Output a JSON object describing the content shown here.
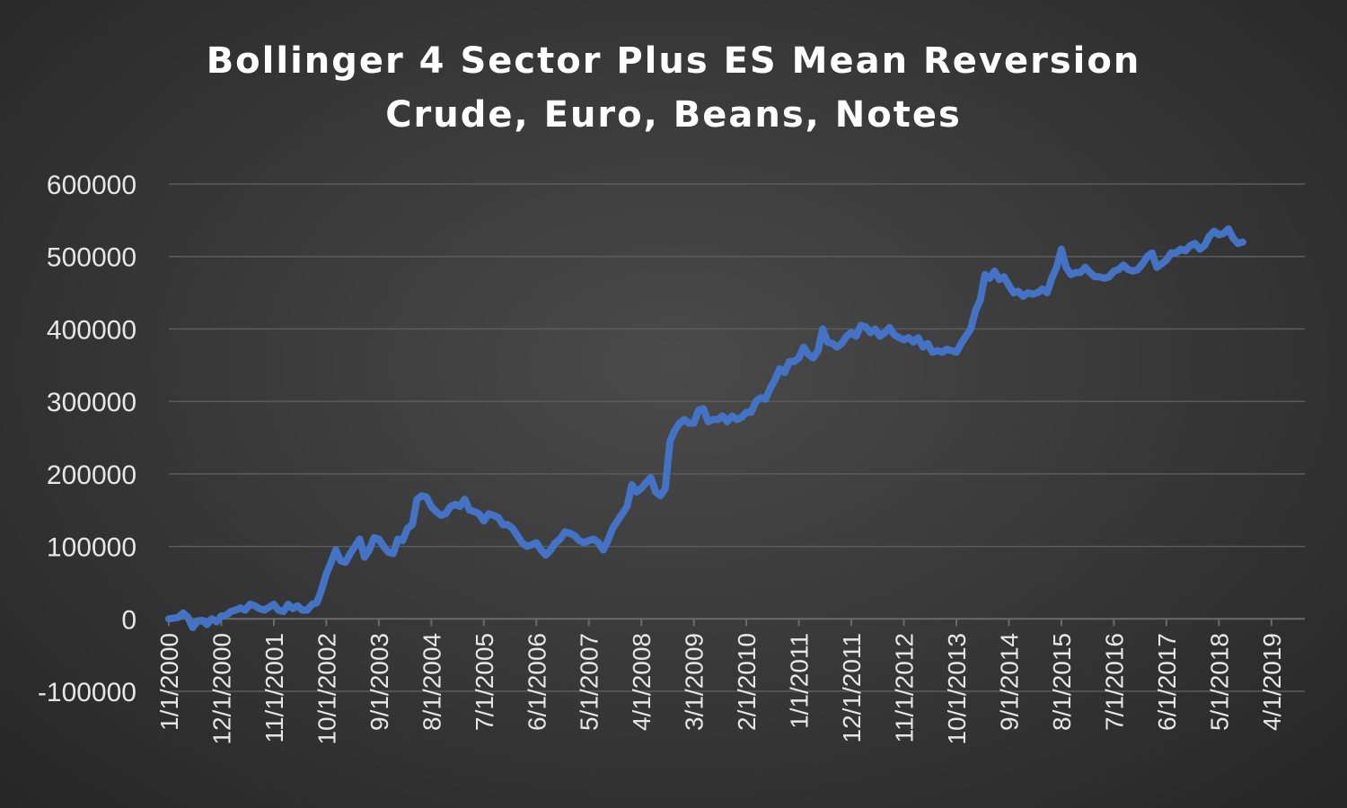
{
  "chart_data": {
    "type": "line",
    "title_line1": "Bollinger 4 Sector Plus ES Mean Reversion",
    "title_line2": "Crude, Euro, Beans, Notes",
    "ylim": [
      -100000,
      600000
    ],
    "y_ticks": [
      "600000",
      "500000",
      "400000",
      "300000",
      "200000",
      "100000",
      "0",
      "-100000"
    ],
    "y_tick_values": [
      600000,
      500000,
      400000,
      300000,
      200000,
      100000,
      0,
      -100000
    ],
    "x_tick_labels": [
      "1/1/2000",
      "12/1/2000",
      "11/1/2001",
      "10/1/2002",
      "9/1/2003",
      "8/1/2004",
      "7/1/2005",
      "6/1/2006",
      "5/1/2007",
      "4/1/2008",
      "3/1/2009",
      "2/1/2010",
      "1/1/2011",
      "12/1/2011",
      "11/1/2012",
      "10/1/2013",
      "9/1/2014",
      "8/1/2015",
      "7/1/2016",
      "6/1/2017",
      "5/1/2018",
      "4/1/2019"
    ],
    "x_tick_months": [
      0,
      11,
      22,
      33,
      44,
      55,
      66,
      77,
      88,
      99,
      110,
      121,
      132,
      143,
      154,
      165,
      176,
      187,
      198,
      209,
      220,
      231
    ],
    "x_range_months": [
      0,
      238
    ],
    "series": [
      {
        "color": "#4472c4",
        "points": [
          [
            0,
            0
          ],
          [
            2,
            2000
          ],
          [
            3,
            8000
          ],
          [
            4,
            2000
          ],
          [
            5,
            -12000
          ],
          [
            6,
            -3000
          ],
          [
            7,
            -2000
          ],
          [
            8,
            -8000
          ],
          [
            9,
            0
          ],
          [
            10,
            -4000
          ],
          [
            11,
            4000
          ],
          [
            12,
            5000
          ],
          [
            13,
            10000
          ],
          [
            14,
            12000
          ],
          [
            15,
            15000
          ],
          [
            16,
            12000
          ],
          [
            17,
            20000
          ],
          [
            18,
            18000
          ],
          [
            19,
            14000
          ],
          [
            20,
            12000
          ],
          [
            21,
            16000
          ],
          [
            22,
            20000
          ],
          [
            23,
            12000
          ],
          [
            24,
            10000
          ],
          [
            25,
            20000
          ],
          [
            26,
            14000
          ],
          [
            27,
            18000
          ],
          [
            28,
            12000
          ],
          [
            29,
            12000
          ],
          [
            30,
            20000
          ],
          [
            31,
            22000
          ],
          [
            32,
            40000
          ],
          [
            33,
            62000
          ],
          [
            34,
            78000
          ],
          [
            35,
            95000
          ],
          [
            36,
            80000
          ],
          [
            37,
            78000
          ],
          [
            38,
            90000
          ],
          [
            39,
            100000
          ],
          [
            40,
            110000
          ],
          [
            41,
            85000
          ],
          [
            42,
            95000
          ],
          [
            43,
            112000
          ],
          [
            44,
            110000
          ],
          [
            45,
            100000
          ],
          [
            46,
            92000
          ],
          [
            47,
            90000
          ],
          [
            48,
            110000
          ],
          [
            49,
            108000
          ],
          [
            50,
            125000
          ],
          [
            51,
            130000
          ],
          [
            52,
            165000
          ],
          [
            53,
            170000
          ],
          [
            54,
            168000
          ],
          [
            55,
            155000
          ],
          [
            56,
            148000
          ],
          [
            57,
            143000
          ],
          [
            58,
            145000
          ],
          [
            59,
            155000
          ],
          [
            60,
            158000
          ],
          [
            61,
            155000
          ],
          [
            62,
            165000
          ],
          [
            63,
            150000
          ],
          [
            64,
            148000
          ],
          [
            65,
            145000
          ],
          [
            66,
            135000
          ],
          [
            67,
            145000
          ],
          [
            68,
            143000
          ],
          [
            69,
            140000
          ],
          [
            70,
            130000
          ],
          [
            71,
            130000
          ],
          [
            72,
            125000
          ],
          [
            73,
            115000
          ],
          [
            74,
            105000
          ],
          [
            75,
            100000
          ],
          [
            76,
            102000
          ],
          [
            77,
            105000
          ],
          [
            78,
            95000
          ],
          [
            79,
            88000
          ],
          [
            80,
            95000
          ],
          [
            81,
            105000
          ],
          [
            82,
            110000
          ],
          [
            83,
            120000
          ],
          [
            84,
            118000
          ],
          [
            85,
            115000
          ],
          [
            86,
            108000
          ],
          [
            87,
            105000
          ],
          [
            88,
            108000
          ],
          [
            89,
            110000
          ],
          [
            90,
            105000
          ],
          [
            91,
            95000
          ],
          [
            92,
            108000
          ],
          [
            93,
            125000
          ],
          [
            94,
            135000
          ],
          [
            95,
            145000
          ],
          [
            96,
            155000
          ],
          [
            97,
            185000
          ],
          [
            98,
            175000
          ],
          [
            99,
            180000
          ],
          [
            100,
            188000
          ],
          [
            101,
            195000
          ],
          [
            102,
            175000
          ],
          [
            103,
            170000
          ],
          [
            104,
            180000
          ],
          [
            105,
            245000
          ],
          [
            106,
            260000
          ],
          [
            107,
            270000
          ],
          [
            108,
            275000
          ],
          [
            109,
            270000
          ],
          [
            110,
            270000
          ],
          [
            111,
            288000
          ],
          [
            112,
            290000
          ],
          [
            113,
            272000
          ],
          [
            114,
            275000
          ],
          [
            115,
            275000
          ],
          [
            116,
            280000
          ],
          [
            117,
            272000
          ],
          [
            118,
            280000
          ],
          [
            119,
            275000
          ],
          [
            120,
            278000
          ],
          [
            121,
            285000
          ],
          [
            122,
            285000
          ],
          [
            123,
            300000
          ],
          [
            124,
            305000
          ],
          [
            125,
            303000
          ],
          [
            126,
            318000
          ],
          [
            127,
            330000
          ],
          [
            128,
            345000
          ],
          [
            129,
            340000
          ],
          [
            130,
            355000
          ],
          [
            131,
            355000
          ],
          [
            132,
            360000
          ],
          [
            133,
            375000
          ],
          [
            134,
            365000
          ],
          [
            135,
            360000
          ],
          [
            136,
            370000
          ],
          [
            137,
            400000
          ],
          [
            138,
            382000
          ],
          [
            139,
            380000
          ],
          [
            140,
            375000
          ],
          [
            141,
            380000
          ],
          [
            142,
            390000
          ],
          [
            143,
            395000
          ],
          [
            144,
            390000
          ],
          [
            145,
            405000
          ],
          [
            146,
            403000
          ],
          [
            147,
            395000
          ],
          [
            148,
            400000
          ],
          [
            149,
            390000
          ],
          [
            150,
            395000
          ],
          [
            151,
            402000
          ],
          [
            152,
            392000
          ],
          [
            153,
            388000
          ],
          [
            154,
            385000
          ],
          [
            155,
            388000
          ],
          [
            156,
            382000
          ],
          [
            157,
            388000
          ],
          [
            158,
            375000
          ],
          [
            159,
            380000
          ],
          [
            160,
            368000
          ],
          [
            161,
            370000
          ],
          [
            162,
            368000
          ],
          [
            163,
            372000
          ],
          [
            164,
            370000
          ],
          [
            165,
            368000
          ],
          [
            166,
            380000
          ],
          [
            167,
            390000
          ],
          [
            168,
            400000
          ],
          [
            169,
            425000
          ],
          [
            170,
            440000
          ],
          [
            171,
            475000
          ],
          [
            172,
            470000
          ],
          [
            173,
            480000
          ],
          [
            174,
            468000
          ],
          [
            175,
            472000
          ],
          [
            176,
            460000
          ],
          [
            177,
            450000
          ],
          [
            178,
            452000
          ],
          [
            179,
            445000
          ],
          [
            180,
            450000
          ],
          [
            181,
            448000
          ],
          [
            182,
            450000
          ],
          [
            183,
            455000
          ],
          [
            184,
            450000
          ],
          [
            185,
            470000
          ],
          [
            186,
            485000
          ],
          [
            187,
            510000
          ],
          [
            188,
            485000
          ],
          [
            189,
            475000
          ],
          [
            190,
            478000
          ],
          [
            191,
            478000
          ],
          [
            192,
            485000
          ],
          [
            193,
            478000
          ],
          [
            194,
            472000
          ],
          [
            195,
            472000
          ],
          [
            196,
            470000
          ],
          [
            197,
            472000
          ],
          [
            198,
            480000
          ],
          [
            199,
            482000
          ],
          [
            200,
            488000
          ],
          [
            201,
            482000
          ],
          [
            202,
            480000
          ],
          [
            203,
            482000
          ],
          [
            204,
            490000
          ],
          [
            205,
            500000
          ],
          [
            206,
            505000
          ],
          [
            207,
            485000
          ],
          [
            208,
            490000
          ],
          [
            209,
            495000
          ],
          [
            210,
            505000
          ],
          [
            211,
            505000
          ],
          [
            212,
            510000
          ],
          [
            213,
            508000
          ],
          [
            214,
            515000
          ],
          [
            215,
            518000
          ],
          [
            216,
            510000
          ],
          [
            217,
            515000
          ],
          [
            218,
            528000
          ],
          [
            219,
            535000
          ],
          [
            220,
            530000
          ],
          [
            221,
            532000
          ],
          [
            222,
            538000
          ],
          [
            223,
            525000
          ],
          [
            224,
            518000
          ],
          [
            225,
            520000
          ]
        ]
      }
    ]
  }
}
